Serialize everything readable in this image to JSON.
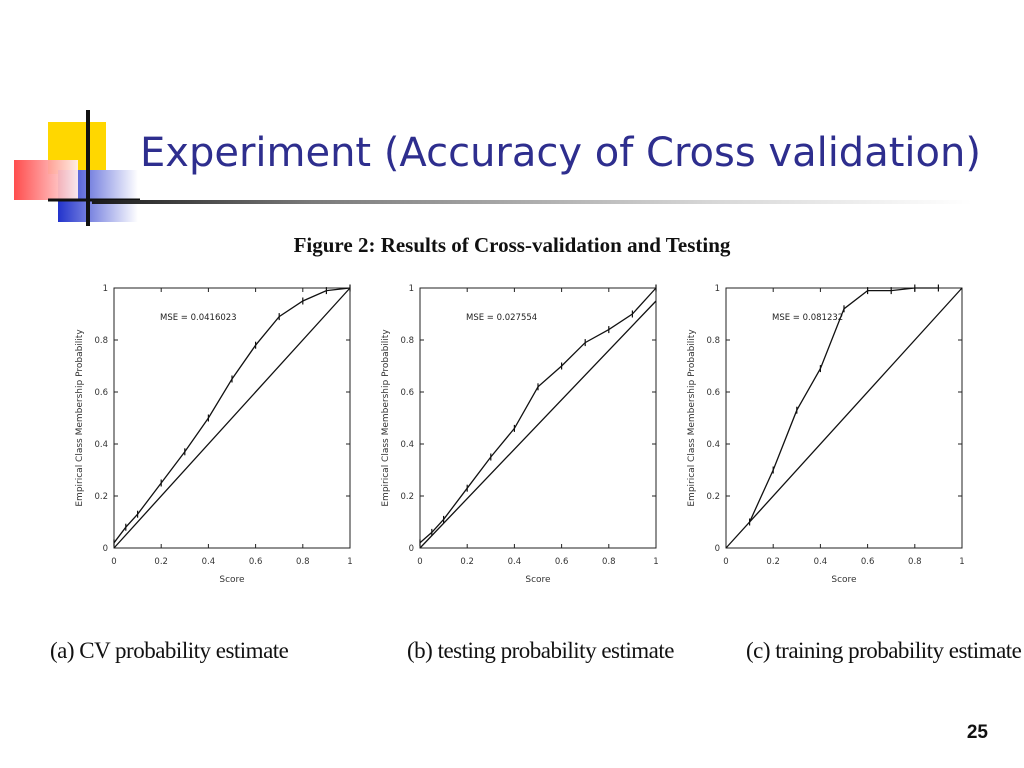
{
  "slide": {
    "title": "Experiment (Accuracy of Cross validation)",
    "figure_title": "Figure 2: Results of Cross-validation and Testing",
    "page_number": "25"
  },
  "colors": {
    "title": "#2E2E8E",
    "logo_yellow": "#FFD700",
    "logo_blue": "#2233CC",
    "logo_red": "#FF3333"
  },
  "chart_data": [
    {
      "type": "line",
      "caption": "(a) CV probability estimate",
      "annotation": "MSE = 0.0416023",
      "xlabel": "Score",
      "ylabel": "Empirical Class Membership Probability",
      "xlim": [
        0,
        1
      ],
      "ylim": [
        0,
        1
      ],
      "xticks": [
        "0",
        "0.2",
        "0.4",
        "0.6",
        "0.8",
        "1"
      ],
      "yticks": [
        "0",
        "0.2",
        "0.4",
        "0.6",
        "0.8",
        "1"
      ],
      "series": [
        {
          "x": [
            0,
            0.05,
            0.1,
            0.2,
            0.3,
            0.4,
            0.5,
            0.6,
            0.7,
            0.8,
            0.9,
            1.0
          ],
          "y": [
            0.02,
            0.08,
            0.13,
            0.25,
            0.37,
            0.5,
            0.65,
            0.78,
            0.89,
            0.95,
            0.99,
            1.0
          ],
          "markers": true
        },
        {
          "x": [
            0,
            1
          ],
          "y": [
            0,
            1
          ],
          "markers": false
        }
      ]
    },
    {
      "type": "line",
      "caption": "(b) testing probability estimate",
      "annotation": "MSE = 0.027554",
      "xlabel": "Score",
      "ylabel": "Empirical Class Membership Probability",
      "xlim": [
        0,
        1
      ],
      "ylim": [
        0,
        1
      ],
      "xticks": [
        "0",
        "0.2",
        "0.4",
        "0.6",
        "0.8",
        "1"
      ],
      "yticks": [
        "0",
        "0.2",
        "0.4",
        "0.6",
        "0.8",
        "1"
      ],
      "series": [
        {
          "x": [
            0,
            0.05,
            0.1,
            0.2,
            0.3,
            0.4,
            0.5,
            0.6,
            0.7,
            0.8,
            0.9,
            1.0
          ],
          "y": [
            0.02,
            0.06,
            0.11,
            0.23,
            0.35,
            0.46,
            0.62,
            0.7,
            0.79,
            0.84,
            0.9,
            1.0
          ],
          "markers": true
        },
        {
          "x": [
            0,
            1
          ],
          "y": [
            0,
            0.95
          ],
          "markers": false
        }
      ]
    },
    {
      "type": "line",
      "caption": "(c) training probability estimate",
      "annotation": "MSE = 0.081232",
      "xlabel": "Score",
      "ylabel": "Empirical Class Membership Probability",
      "xlim": [
        0,
        1
      ],
      "ylim": [
        0,
        1
      ],
      "xticks": [
        "0",
        "0.2",
        "0.4",
        "0.6",
        "0.8",
        "1"
      ],
      "yticks": [
        "0",
        "0.2",
        "0.4",
        "0.6",
        "0.8",
        "1"
      ],
      "series": [
        {
          "x": [
            0.1,
            0.2,
            0.3,
            0.4,
            0.5,
            0.6,
            0.7,
            0.8,
            0.9
          ],
          "y": [
            0.1,
            0.3,
            0.53,
            0.69,
            0.92,
            0.99,
            0.99,
            1.0,
            1.0
          ],
          "markers": true
        },
        {
          "x": [
            0,
            1
          ],
          "y": [
            0,
            1
          ],
          "markers": false
        }
      ]
    }
  ]
}
